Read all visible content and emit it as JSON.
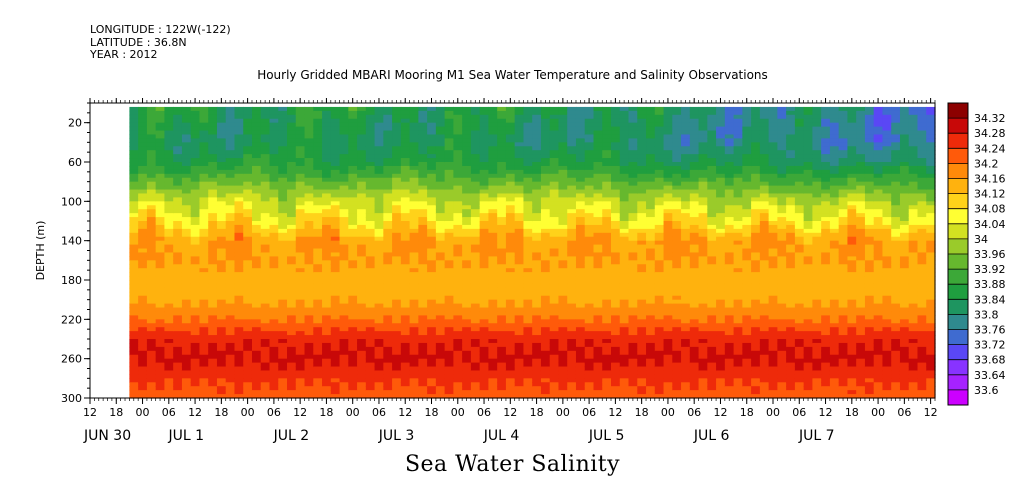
{
  "header": {
    "longitude": "LONGITUDE : 122W(-122)",
    "latitude": "LATITUDE : 36.8N",
    "year": "YEAR : 2012"
  },
  "chart_data": {
    "type": "heatmap",
    "title": "Hourly Gridded MBARI Mooring M1 Sea Water Temperature and Salinity Observations",
    "footer_label": "Sea Water Salinity",
    "ylabel": "DEPTH (m)",
    "ylim": [
      0,
      300
    ],
    "y_reversed": true,
    "y_ticks": [
      20,
      60,
      100,
      140,
      180,
      220,
      260,
      300
    ],
    "x_hour_ticks": [
      "12",
      "18",
      "00",
      "06",
      "12",
      "18",
      "00",
      "06",
      "12",
      "18",
      "00",
      "06",
      "12",
      "18",
      "00",
      "06",
      "12",
      "18",
      "00",
      "06",
      "12",
      "18",
      "00",
      "06",
      "12",
      "18",
      "00",
      "06",
      "12",
      "18",
      "00",
      "06",
      "12"
    ],
    "x_day_labels": [
      "JUN 30",
      "JUL 1",
      "JUL 2",
      "JUL 3",
      "JUL 4",
      "JUL 5",
      "JUL 6",
      "JUL 7"
    ],
    "x_range_hours": [
      -12,
      181
    ],
    "data_start_hour": -3,
    "colorbar_levels": [
      33.6,
      33.64,
      33.68,
      33.72,
      33.76,
      33.8,
      33.84,
      33.88,
      33.92,
      33.96,
      34,
      34.04,
      34.08,
      34.12,
      34.16,
      34.2,
      34.24,
      34.28,
      34.32
    ],
    "colorbar_colors": [
      "#cc00ff",
      "#a622ff",
      "#8833ff",
      "#5a47f5",
      "#3f6bd0",
      "#2f8a8e",
      "#1e9560",
      "#1f9e3f",
      "#3ca838",
      "#66b82e",
      "#9acb2a",
      "#d3e121",
      "#ffff33",
      "#ffd21a",
      "#ffb20e",
      "#ff8a0a",
      "#ff5a0a",
      "#ee2a0a",
      "#c80808",
      "#8c0000"
    ],
    "depth_profile": [
      {
        "depth": 0,
        "value": 33.86
      },
      {
        "depth": 20,
        "value": 33.84
      },
      {
        "depth": 40,
        "value": 33.83
      },
      {
        "depth": 60,
        "value": 33.86
      },
      {
        "depth": 80,
        "value": 33.94
      },
      {
        "depth": 100,
        "value": 34.02
      },
      {
        "depth": 120,
        "value": 34.08
      },
      {
        "depth": 140,
        "value": 34.16
      },
      {
        "depth": 160,
        "value": 34.16
      },
      {
        "depth": 180,
        "value": 34.14
      },
      {
        "depth": 200,
        "value": 34.15
      },
      {
        "depth": 220,
        "value": 34.2
      },
      {
        "depth": 240,
        "value": 34.27
      },
      {
        "depth": 260,
        "value": 34.29
      },
      {
        "depth": 280,
        "value": 34.25
      },
      {
        "depth": 300,
        "value": 34.22
      }
    ]
  }
}
